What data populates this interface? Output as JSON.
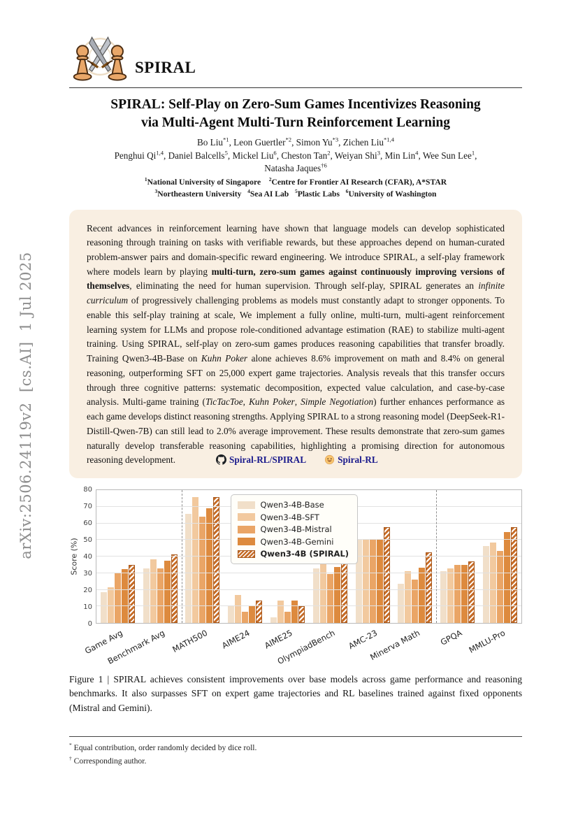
{
  "arxiv_stamp": "arXiv:2506.24119v2  [cs.AI]  1 Jul 2025",
  "logo": {
    "wordmark": "SPIRAL"
  },
  "title": {
    "line1": "SPIRAL: Self-Play on Zero-Sum Games Incentivizes Reasoning",
    "line2": "via Multi-Agent Multi-Turn Reinforcement Learning"
  },
  "authors": {
    "line1": [
      {
        "t": "Bo Liu"
      },
      {
        "t": "*1",
        "sup": true
      },
      {
        "t": ", Leon Guertler"
      },
      {
        "t": "*2",
        "sup": true
      },
      {
        "t": ", Simon Yu"
      },
      {
        "t": "*3",
        "sup": true
      },
      {
        "t": ", Zichen Liu"
      },
      {
        "t": "*1,4",
        "sup": true
      }
    ],
    "line2": [
      {
        "t": "Penghui Qi"
      },
      {
        "t": "1,4",
        "sup": true
      },
      {
        "t": ", Daniel Balcells"
      },
      {
        "t": "5",
        "sup": true
      },
      {
        "t": ", Mickel Liu"
      },
      {
        "t": "6",
        "sup": true
      },
      {
        "t": ", Cheston Tan"
      },
      {
        "t": "2",
        "sup": true
      },
      {
        "t": ", Weiyan Shi"
      },
      {
        "t": "3",
        "sup": true
      },
      {
        "t": ", Min Lin"
      },
      {
        "t": "4",
        "sup": true
      },
      {
        "t": ", Wee Sun Lee"
      },
      {
        "t": "1",
        "sup": true
      },
      {
        "t": ","
      }
    ],
    "line3": [
      {
        "t": "Natasha Jaques"
      },
      {
        "t": "†6",
        "sup": true
      }
    ]
  },
  "affiliations": {
    "line1": [
      {
        "t": "1",
        "sup": true
      },
      {
        "t": "National University of Singapore"
      },
      {
        "t": " "
      },
      {
        "t": "2",
        "sup": true
      },
      {
        "t": "Centre for Frontier AI Research (CFAR), A*STAR"
      }
    ],
    "line2": [
      {
        "t": "3",
        "sup": true
      },
      {
        "t": "Northeastern University"
      },
      {
        "t": "  "
      },
      {
        "t": "4",
        "sup": true
      },
      {
        "t": "Sea AI Lab"
      },
      {
        "t": "  "
      },
      {
        "t": "5",
        "sup": true
      },
      {
        "t": "Plastic Labs"
      },
      {
        "t": "  "
      },
      {
        "t": "6",
        "sup": true
      },
      {
        "t": "University of Washington"
      }
    ]
  },
  "abstract": {
    "segments": [
      {
        "t": "Recent advances in reinforcement learning have shown that language models can develop sophisticated reasoning through training on tasks with verifiable rewards, but these approaches depend on human-curated problem-answer pairs and domain-specific reward engineering. We introduce SPIRAL, a self-play framework where models learn by playing "
      },
      {
        "t": "multi-turn, zero-sum games against continuously improving versions of themselves",
        "b": true
      },
      {
        "t": ", eliminating the need for human supervision. Through self-play, SPIRAL generates an "
      },
      {
        "t": "infinite curriculum",
        "i": true
      },
      {
        "t": " of progressively challenging problems as models must constantly adapt to stronger opponents. To enable this self-play training at scale, We implement a fully online, multi-turn, multi-agent reinforcement learning system for LLMs and propose role-conditioned advantage estimation (RAE) to stabilize multi-agent training. Using SPIRAL, self-play on zero-sum games produces reasoning capabilities that transfer broadly. Training Qwen3-4B-Base on "
      },
      {
        "t": "Kuhn Poker",
        "i": true
      },
      {
        "t": " alone achieves 8.6% improvement on math and 8.4% on general reasoning, outperforming SFT on 25,000 expert game trajectories. Analysis reveals that this transfer occurs through three cognitive patterns: systematic decomposition, expected value calculation, and case-by-case analysis. Multi-game training ("
      },
      {
        "t": "TicTacToe",
        "i": true
      },
      {
        "t": ", "
      },
      {
        "t": "Kuhn Poker",
        "i": true
      },
      {
        "t": ", "
      },
      {
        "t": "Simple Negotiation",
        "i": true
      },
      {
        "t": ") further enhances performance as each game develops distinct reasoning strengths. Applying SPIRAL to a strong reasoning model (DeepSeek-R1-Distill-Qwen-7B) can still lead to 2.0% average improvement. These results demonstrate that zero-sum games naturally develop transferable reasoning capabilities, highlighting a promising direction for autonomous reasoning development."
      }
    ],
    "links": [
      {
        "icon": "github-icon",
        "label": "Spiral-RL/SPIRAL"
      },
      {
        "icon": "huggingface-icon",
        "label": "Spiral-RL"
      }
    ],
    "link_color": "#1a1a8c"
  },
  "chart_data": {
    "type": "bar",
    "ylabel": "Score (%)",
    "ylim": [
      0,
      80
    ],
    "yticks": [
      0,
      10,
      20,
      30,
      40,
      50,
      60,
      70,
      80
    ],
    "grid": true,
    "legend_position": "upper center-left inside plot",
    "categories": [
      "Game Avg",
      "Benchmark Avg",
      "MATH500",
      "AIME24",
      "AIME25",
      "OlympiadBench",
      "AMC-23",
      "Minerva Math",
      "GPQA",
      "MMLU-Pro"
    ],
    "separators_after_index": [
      2,
      8
    ],
    "series": [
      {
        "name": "Qwen3-4B-Base",
        "color": "#f1dfc9",
        "hatch": false,
        "bold": false,
        "values": [
          18.5,
          32.9,
          65.6,
          10.0,
          3.3,
          33.0,
          50.0,
          23.7,
          31.1,
          46.5
        ]
      },
      {
        "name": "Qwen3-4B-SFT",
        "color": "#f2c99e",
        "hatch": false,
        "bold": false,
        "values": [
          21.5,
          38.2,
          75.6,
          16.7,
          13.3,
          37.3,
          50.0,
          31.0,
          32.8,
          48.3
        ]
      },
      {
        "name": "Qwen3-4B-Mistral",
        "color": "#eaa566",
        "hatch": false,
        "bold": false,
        "values": [
          30.4,
          32.9,
          64.0,
          6.7,
          6.7,
          29.5,
          50.0,
          26.0,
          35.1,
          43.2
        ]
      },
      {
        "name": "Qwen3-4B-Gemini",
        "color": "#dd8a3e",
        "hatch": false,
        "bold": false,
        "values": [
          32.6,
          37.4,
          69.0,
          10.0,
          13.3,
          33.6,
          50.0,
          33.3,
          35.1,
          54.9
        ]
      },
      {
        "name": "Qwen3-4B (SPIRAL)",
        "color": "#c66c27",
        "hatch": true,
        "bold": true,
        "values": [
          35.0,
          41.4,
          75.8,
          13.3,
          10.0,
          38.1,
          57.5,
          42.5,
          36.9,
          57.6
        ]
      }
    ]
  },
  "caption": [
    {
      "t": "Figure 1 | SPIRAL achieves consistent improvements over base models across game performance and reasoning benchmarks. It also surpasses SFT on expert game trajectories and RL baselines trained against fixed opponents (Mistral and Gemini)."
    }
  ],
  "footnotes": {
    "line1": [
      {
        "t": "*",
        "sup": true
      },
      {
        "t": " Equal contribution, order randomly decided by dice roll."
      }
    ],
    "line2": [
      {
        "t": "†",
        "sup": true
      },
      {
        "t": " Corresponding author."
      }
    ]
  }
}
